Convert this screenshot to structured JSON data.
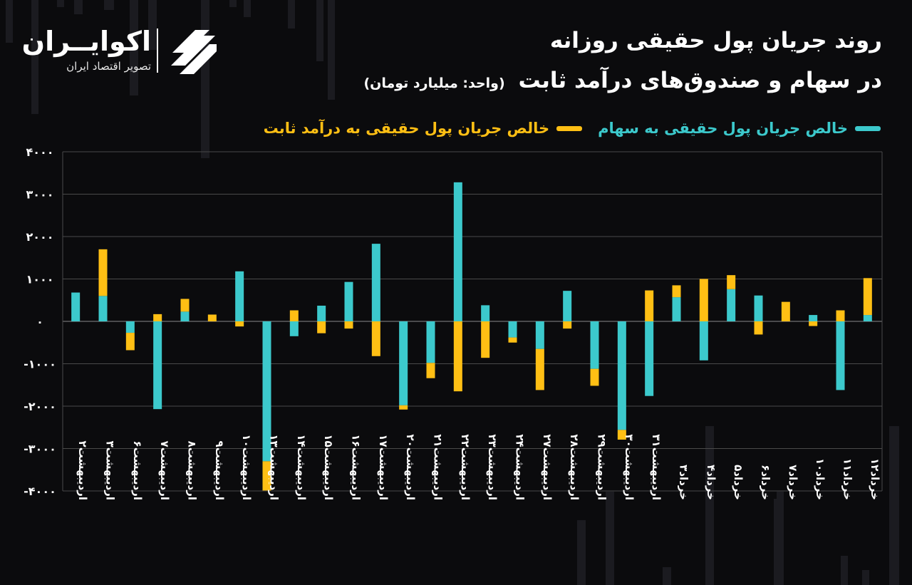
{
  "header": {
    "title_line1": "روند جریان پول حقیقی روزانه",
    "title_line2": "در سهام و صندوق‌های درآمد ثابت",
    "unit_note": "(واحد: میلیارد تومان)"
  },
  "logo": {
    "name": "اکوایــران",
    "tagline": "تصویر اقتصاد ایران",
    "icon": "ecoiran-logo-mark"
  },
  "colors": {
    "background": "#0b0b0d",
    "stocks": "#3cc9cc",
    "fixed_income": "#ffbf14",
    "grid": "#4a4a4a",
    "text": "#ffffff"
  },
  "chart_data": {
    "type": "bar",
    "stacked": true,
    "grid": true,
    "legend_position": "top-right",
    "ylim": [
      -4000,
      4000
    ],
    "yticks": [
      "۴۰۰۰",
      "۳۰۰۰",
      "۲۰۰۰",
      "۱۰۰۰",
      "۰",
      "-۱۰۰۰",
      "-۲۰۰۰",
      "-۳۰۰۰",
      "-۴۰۰۰"
    ],
    "ytick_values": [
      4000,
      3000,
      2000,
      1000,
      0,
      -1000,
      -2000,
      -3000,
      -4000
    ],
    "categories": [
      "اردیبهشت۲",
      "اردیبهشت۳",
      "اردیبهشت۶",
      "اردیبهشت۷",
      "اردیبهشت۸",
      "اردیبهشت۹",
      "اردیبهشت۱۰",
      "اردیبهشت۱۳",
      "اردیبهشت۱۴",
      "اردیبهشت۱۵",
      "اردیبهشت۱۶",
      "اردیبهشت۱۷",
      "اردیبهشت۲۰",
      "اردیبهشت۲۱",
      "اردیبهشت۲۲",
      "اردیبهشت۲۳",
      "اردیبهشت۲۴",
      "اردیبهشت۲۷",
      "اردیبهشت۲۸",
      "اردیبهشت۲۹",
      "اردیبهشت۳۰",
      "اردیبهشت۳۱",
      "خرداد۳",
      "خرداد۴",
      "خرداد۵",
      "خرداد۶",
      "خرداد۷",
      "خرداد۱۰",
      "خرداد۱۱",
      "خرداد۱۲"
    ],
    "series": [
      {
        "name": "خالص جریان پول حقیقی به سهام",
        "color": "#3cc9cc",
        "values": [
          680,
          600,
          -270,
          -2070,
          230,
          0,
          1180,
          -3300,
          -350,
          370,
          930,
          1830,
          -1980,
          -980,
          3280,
          380,
          -380,
          -650,
          720,
          -1120,
          -2560,
          -1760,
          570,
          -920,
          760,
          610,
          0,
          150,
          -1620,
          150
        ]
      },
      {
        "name": "خالص جریان پول حقیقی به درآمد ثابت",
        "color": "#ffbf14",
        "values": [
          0,
          1100,
          -410,
          170,
          300,
          160,
          -120,
          -690,
          260,
          -280,
          -170,
          -820,
          -100,
          -360,
          -1650,
          -860,
          -120,
          -970,
          -170,
          -400,
          -230,
          730,
          280,
          1000,
          330,
          -310,
          460,
          -110,
          260,
          870
        ]
      }
    ]
  }
}
